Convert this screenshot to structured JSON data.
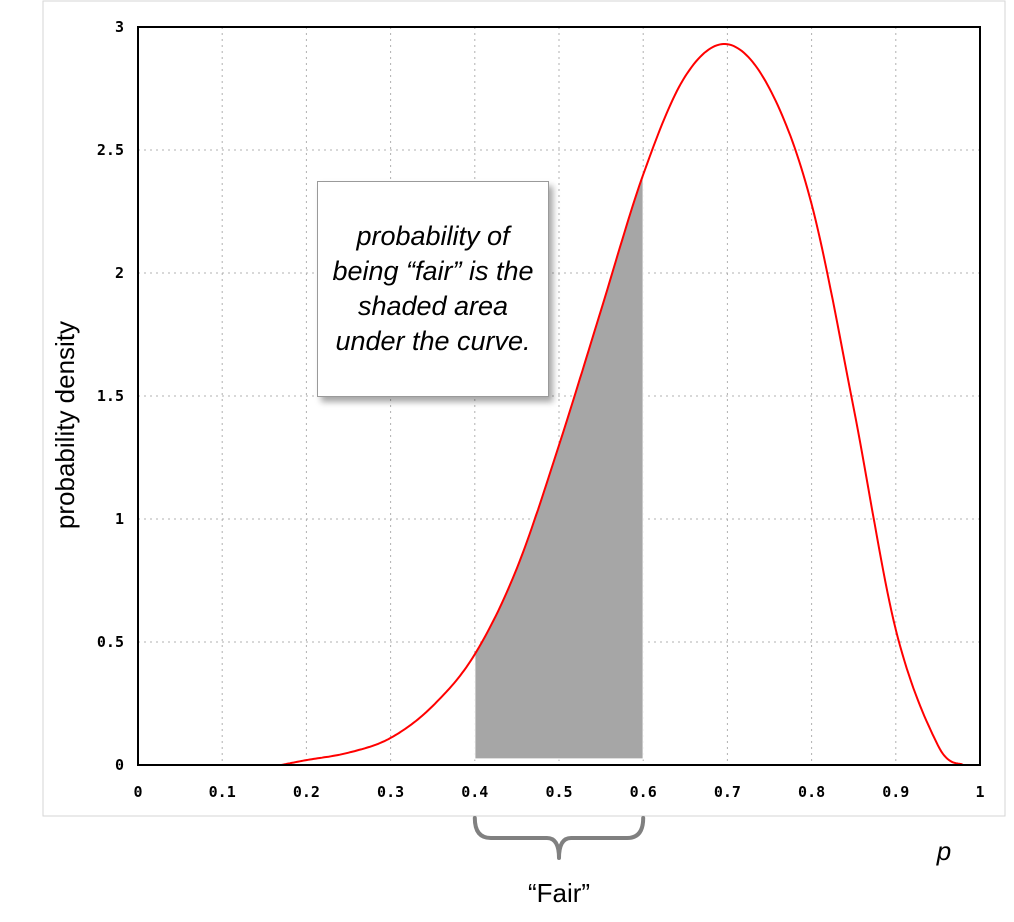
{
  "chart_data": {
    "type": "line",
    "xlabel": "p",
    "ylabel": "probability density",
    "xlim": [
      0,
      1
    ],
    "ylim": [
      0,
      3
    ],
    "x_ticks": [
      "0",
      "0.1",
      "0.2",
      "0.3",
      "0.4",
      "0.5",
      "0.6",
      "0.7",
      "0.8",
      "0.9",
      "1"
    ],
    "y_ticks": [
      "0",
      "0.5",
      "1",
      "1.5",
      "2",
      "2.5",
      "3"
    ],
    "grid": true,
    "series": [
      {
        "color": "#ff0000",
        "points": [
          [
            0.17,
            0.0
          ],
          [
            0.2,
            0.02
          ],
          [
            0.25,
            0.05
          ],
          [
            0.3,
            0.11
          ],
          [
            0.35,
            0.24
          ],
          [
            0.4,
            0.45
          ],
          [
            0.45,
            0.8
          ],
          [
            0.5,
            1.3
          ],
          [
            0.55,
            1.85
          ],
          [
            0.6,
            2.4
          ],
          [
            0.65,
            2.8
          ],
          [
            0.7,
            2.93
          ],
          [
            0.75,
            2.75
          ],
          [
            0.8,
            2.28
          ],
          [
            0.85,
            1.45
          ],
          [
            0.9,
            0.55
          ],
          [
            0.95,
            0.08
          ],
          [
            0.98,
            0.0
          ]
        ]
      }
    ],
    "shaded_region": {
      "x_start": 0.4,
      "x_end": 0.6,
      "color": "#a6a6a6"
    },
    "annotation": "probability of being “fair” is the shaded area under the curve.",
    "brace_label": "“Fair”",
    "brace_range": [
      0.4,
      0.6
    ]
  }
}
